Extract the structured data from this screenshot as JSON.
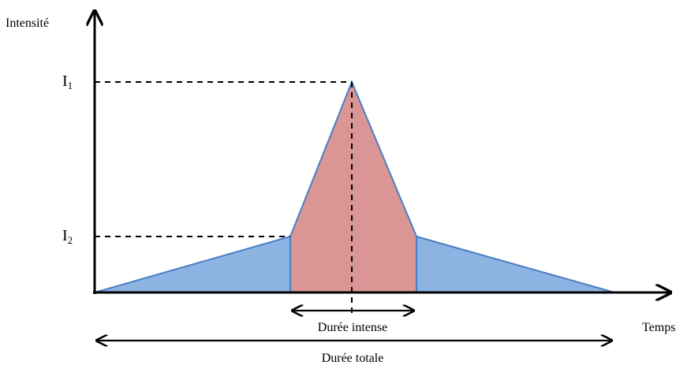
{
  "axes": {
    "y_label": "Intensité",
    "x_label": "Temps"
  },
  "levels": {
    "i1_letter": "I",
    "i1_sub": "1",
    "i2_letter": "I",
    "i2_sub": "2"
  },
  "durations": {
    "intense": "Durée intense",
    "total": "Durée totale"
  },
  "colors": {
    "blue_fill": "#8DB3E2",
    "blue_stroke": "#4A7EC4",
    "red_fill": "#D99694",
    "axis": "#000000"
  }
}
